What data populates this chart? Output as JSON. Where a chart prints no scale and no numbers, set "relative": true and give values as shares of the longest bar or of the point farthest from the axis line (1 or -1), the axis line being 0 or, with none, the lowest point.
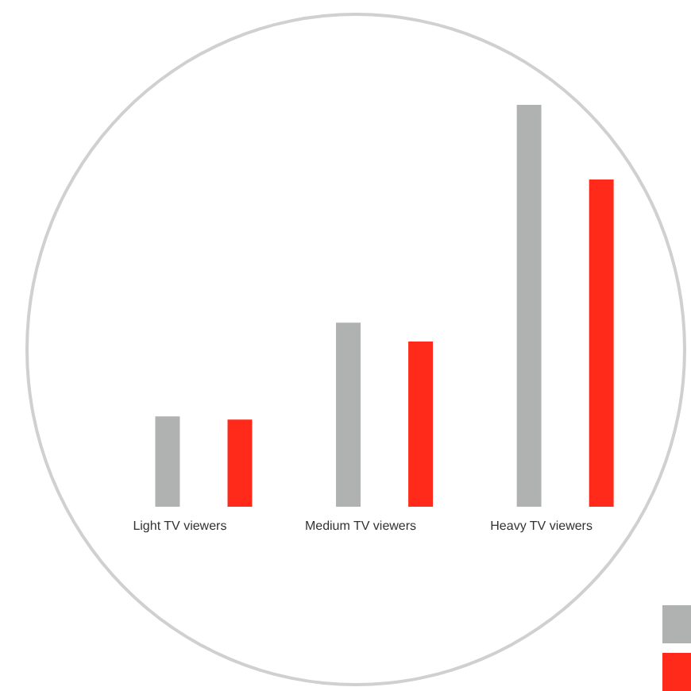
{
  "chart_data": {
    "type": "bar",
    "relative": true,
    "categories": [
      "Light TV viewers",
      "Medium TV viewers",
      "Heavy TV viewers"
    ],
    "series": [
      {
        "color": "#b0b2b2",
        "values": [
          0.225,
          0.458,
          1
        ]
      },
      {
        "color": "#ff2a1a",
        "values": [
          0.217,
          0.411,
          0.814
        ]
      }
    ]
  }
}
